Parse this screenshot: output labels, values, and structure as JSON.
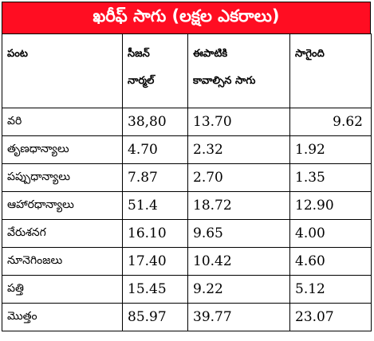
{
  "title": "ఖరీఫ్ సాగు (లక్షల ఎకరాలు)",
  "headers": {
    "crop": "పంట",
    "season_normal_line1": "సీజన్",
    "season_normal_line2": "నార్మల్",
    "required_line1": "ఈపాటికి",
    "required_line2": "కావాల్సిన సాగు",
    "cultivated": "సాగైంది"
  },
  "rows": [
    {
      "crop": "వరి",
      "normal": "38,80",
      "required": "13.70",
      "cultivated": "9.62"
    },
    {
      "crop": "తృణధాన్యాలు",
      "normal": "4.70",
      "required": "2.32",
      "cultivated": "1.92"
    },
    {
      "crop": "పప్పుధాన్యాలు",
      "normal": "7.87",
      "required": "2.70",
      "cultivated": "1.35"
    },
    {
      "crop": "ఆహారధాన్యాలు",
      "normal": "51.4",
      "required": "18.72",
      "cultivated": "12.90"
    },
    {
      "crop": "వేరుశనగ",
      "normal": "16.10",
      "required": "9.65",
      "cultivated": "4.00"
    },
    {
      "crop": "నూనెగింజలు",
      "normal": "17.40",
      "required": "10.42",
      "cultivated": "4.60"
    },
    {
      "crop": "పత్తి",
      "normal": "15.45",
      "required": "9.22",
      "cultivated": "5.12"
    },
    {
      "crop": "మొత్తం",
      "normal": "85.97",
      "required": "39.77",
      "cultivated": "23.07"
    }
  ],
  "colors": {
    "banner": "#ff0d22",
    "banner_text": "#ffffff"
  }
}
